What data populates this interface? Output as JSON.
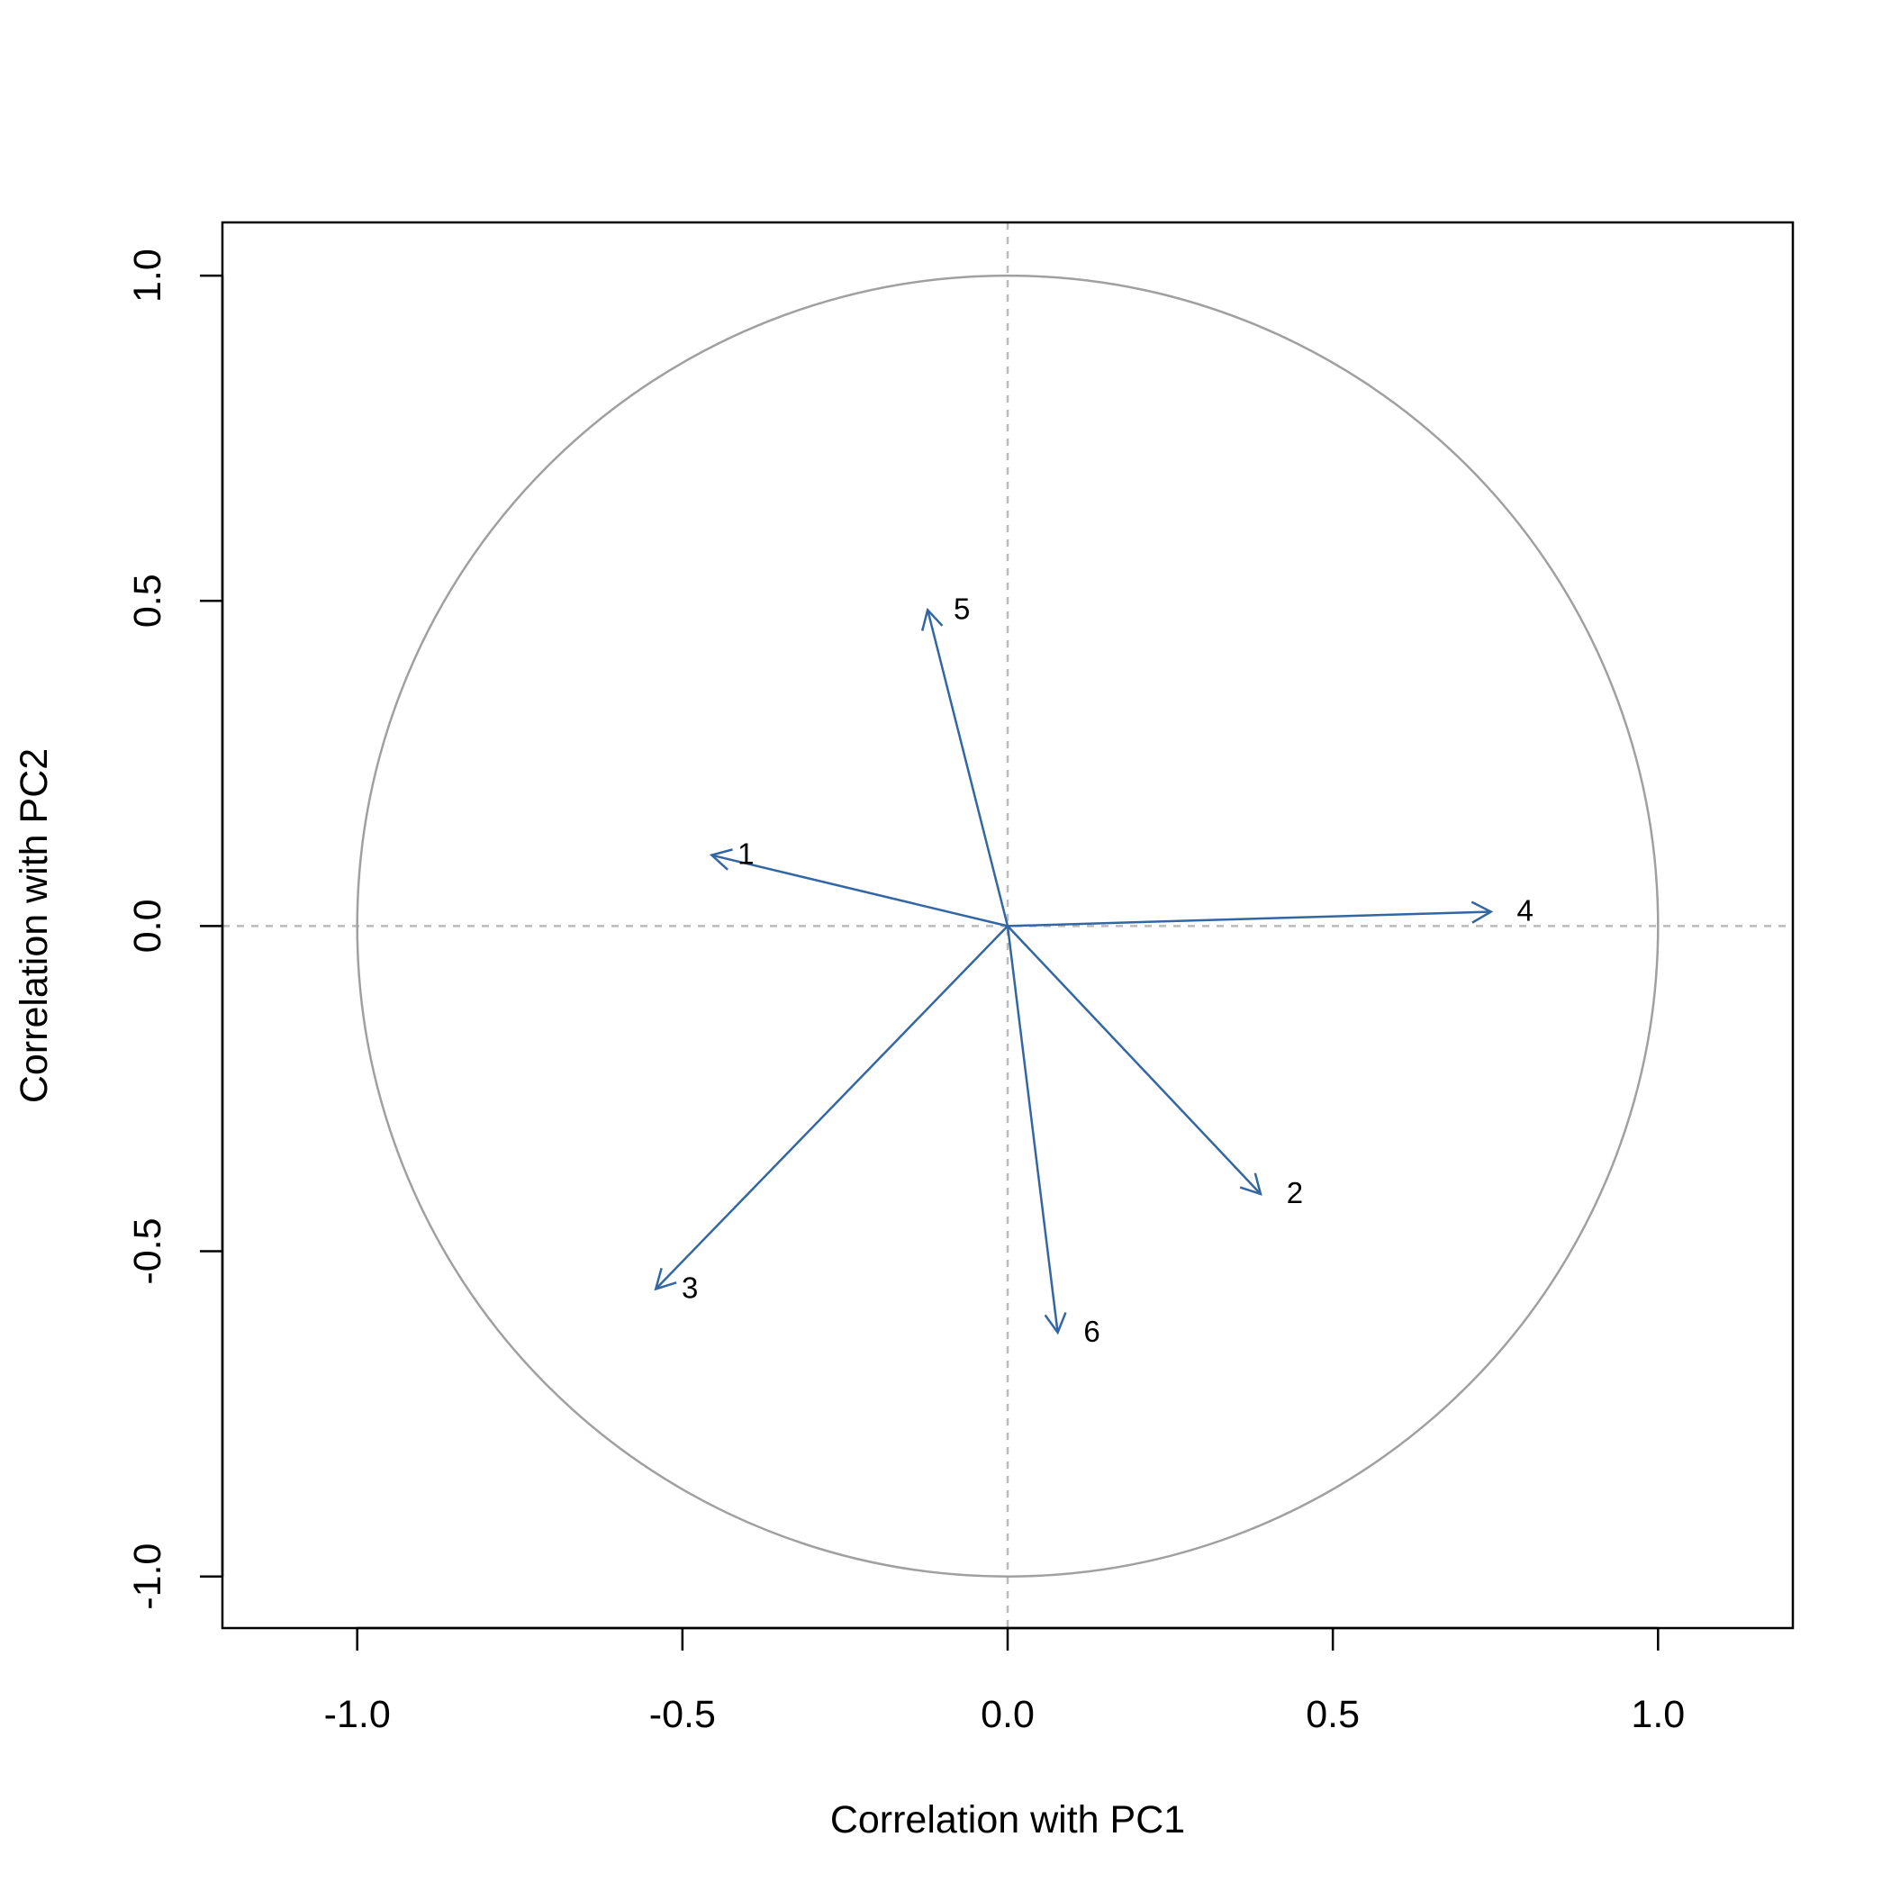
{
  "chart_data": {
    "type": "correlation-circle",
    "xlabel": "Correlation with PC1",
    "ylabel": "Correlation with PC2",
    "xlim": [
      -1.2,
      1.2
    ],
    "ylim": [
      -1.08,
      1.08
    ],
    "xticks": [
      "-1.0",
      "-0.5",
      "0.0",
      "0.5",
      "1.0"
    ],
    "yticks": [
      "-1.0",
      "-0.5",
      "0.0",
      "0.5",
      "1.0"
    ],
    "grid": false,
    "reference_lines": {
      "x": 0,
      "y": 0,
      "style": "dashed"
    },
    "unit_circle": true,
    "vectors": [
      {
        "label": "1",
        "x": -0.455,
        "y": 0.109
      },
      {
        "label": "2",
        "x": 0.389,
        "y": -0.412
      },
      {
        "label": "3",
        "x": -0.541,
        "y": -0.558
      },
      {
        "label": "4",
        "x": 0.743,
        "y": 0.022
      },
      {
        "label": "5",
        "x": -0.123,
        "y": 0.486
      },
      {
        "label": "6",
        "x": 0.077,
        "y": -0.625
      }
    ],
    "colors": {
      "arrow": "#3366a3",
      "circle": "#a0a0a0",
      "reference": "#bbbbbb",
      "axis": "#000000"
    }
  }
}
